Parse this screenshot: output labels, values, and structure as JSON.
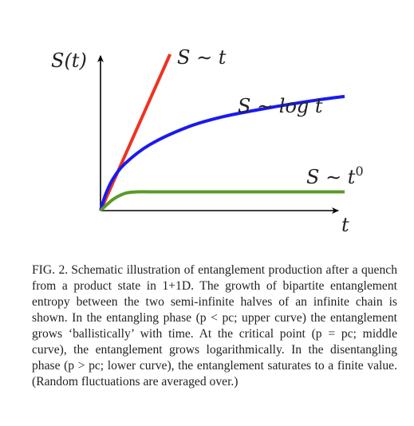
{
  "figure": {
    "y_axis_label": "S(t)",
    "x_axis_label": "t",
    "colors": {
      "axes": "#000000",
      "ballistic": "#ee3322",
      "logarithmic": "#1a1aee",
      "saturating": "#5a9a28"
    }
  },
  "chart_data": {
    "type": "line",
    "title": "",
    "xlabel": "t",
    "ylabel": "S(t)",
    "schematic": true,
    "grid": false,
    "legend": "none",
    "xlim": [
      0,
      1
    ],
    "ylim": [
      0,
      1
    ],
    "series": [
      {
        "name": "S ~ t",
        "annotation": "S ∼ t",
        "curve": "upper",
        "color": "#ee3322",
        "x": [
          0,
          0.285
        ],
        "y": [
          0,
          1.0
        ]
      },
      {
        "name": "S ~ log t",
        "annotation": "S ∼ log t",
        "curve": "middle",
        "color": "#1a1aee",
        "x": [
          0,
          0.02,
          0.05,
          0.1,
          0.2,
          0.35,
          0.5,
          0.7,
          0.9,
          1.0
        ],
        "y": [
          0,
          0.1,
          0.2,
          0.3,
          0.42,
          0.53,
          0.6,
          0.66,
          0.71,
          0.73
        ]
      },
      {
        "name": "S ~ t^0",
        "annotation": "S ∼ t",
        "annotation_superscript": "0",
        "curve": "lower",
        "color": "#5a9a28",
        "x": [
          0,
          0.05,
          0.1,
          0.15,
          0.2,
          0.3,
          0.5,
          0.75,
          1.0
        ],
        "y": [
          0,
          0.07,
          0.11,
          0.12,
          0.12,
          0.12,
          0.12,
          0.12,
          0.12
        ]
      }
    ]
  },
  "caption": {
    "label": "FIG. 2.",
    "text": "Schematic illustration of entanglement production after a quench from a product state in 1+1D. The growth of bipartite entanglement entropy between the two semi-infinite halves of an infinite chain is shown. In the entangling phase (p < pc; upper curve) the entanglement grows ‘ballistically’ with time. At the critical point (p = pc; middle curve), the entanglement grows logarithmically. In the disentangling phase (p > pc; lower curve), the entanglement saturates to a finite value. (Random fluctuations are averaged over.)"
  }
}
